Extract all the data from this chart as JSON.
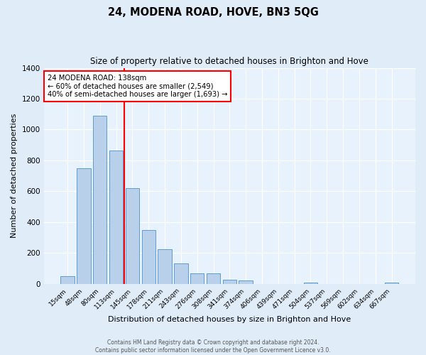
{
  "title": "24, MODENA ROAD, HOVE, BN3 5QG",
  "subtitle": "Size of property relative to detached houses in Brighton and Hove",
  "xlabel": "Distribution of detached houses by size in Brighton and Hove",
  "ylabel": "Number of detached properties",
  "bin_labels": [
    "15sqm",
    "48sqm",
    "80sqm",
    "113sqm",
    "145sqm",
    "178sqm",
    "211sqm",
    "243sqm",
    "276sqm",
    "308sqm",
    "341sqm",
    "374sqm",
    "406sqm",
    "439sqm",
    "471sqm",
    "504sqm",
    "537sqm",
    "569sqm",
    "602sqm",
    "634sqm",
    "667sqm"
  ],
  "bar_values": [
    50,
    750,
    1090,
    865,
    620,
    350,
    225,
    130,
    70,
    70,
    25,
    20,
    0,
    0,
    0,
    10,
    0,
    0,
    0,
    0,
    10
  ],
  "bar_color": "#b8d0ea",
  "bar_edgecolor": "#5b9bd5",
  "property_line_label": "24 MODENA ROAD: 138sqm",
  "annotation_line1": "← 60% of detached houses are smaller (2,549)",
  "annotation_line2": "40% of semi-detached houses are larger (1,693) →",
  "vline_color": "red",
  "vline_x_index": 3.5,
  "ylim": [
    0,
    1400
  ],
  "yticks": [
    0,
    200,
    400,
    600,
    800,
    1000,
    1200,
    1400
  ],
  "footer1": "Contains HM Land Registry data © Crown copyright and database right 2024.",
  "footer2": "Contains public sector information licensed under the Open Government Licence v3.0.",
  "background_color": "#e0ecf8",
  "plot_background": "#e8f2fc"
}
